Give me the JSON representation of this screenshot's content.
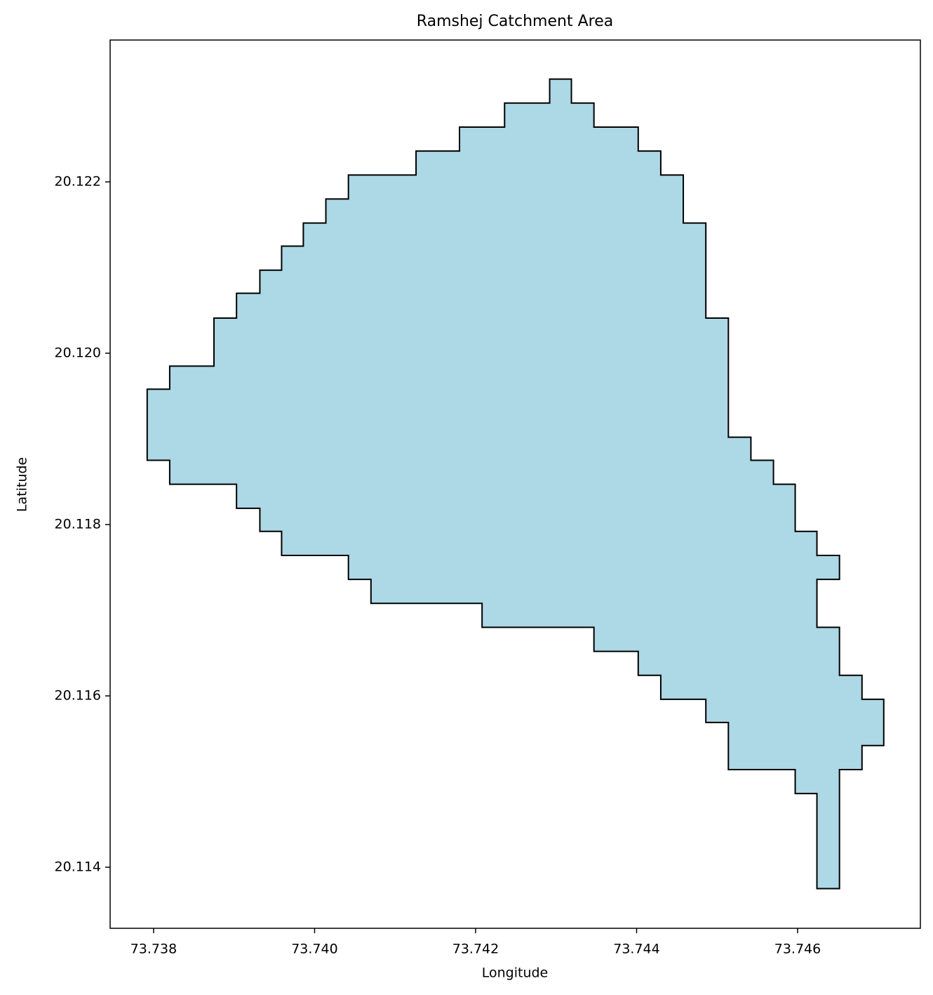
{
  "chart_data": {
    "type": "polygon",
    "title": "Ramshej Catchment Area",
    "x_label": "Longitude",
    "y_label": "Latitude",
    "fill_color": "#add8e6",
    "edge_color": "#000000",
    "xlim": [
      73.73746,
      73.747525
    ],
    "ylim": [
      20.113287,
      20.123656
    ],
    "xticks": [
      73.738,
      73.74,
      73.742,
      73.744,
      73.746
    ],
    "xtick_labels": [
      "73.738",
      "73.740",
      "73.742",
      "73.744",
      "73.746"
    ],
    "yticks": [
      20.114,
      20.116,
      20.118,
      {
        "value": 20.12,
        "label": "20.120"
      },
      20.122
    ],
    "x": [
      73.74292,
      73.74319,
      73.74319,
      73.74347,
      73.74347,
      73.74402,
      73.74402,
      73.7443,
      73.7443,
      73.74458,
      73.74458,
      73.74486,
      73.74486,
      73.74514,
      73.74514,
      73.74542,
      73.74542,
      73.7457,
      73.7457,
      73.74597,
      73.74597,
      73.74624,
      73.74624,
      73.74652,
      73.74652,
      73.74624,
      73.74624,
      73.74652,
      73.74652,
      73.7468,
      73.7468,
      73.74707,
      73.74707,
      73.7468,
      73.7468,
      73.74652,
      73.74652,
      73.74624,
      73.74624,
      73.74597,
      73.74597,
      73.74514,
      73.74514,
      73.74486,
      73.74486,
      73.7443,
      73.7443,
      73.74402,
      73.74402,
      73.74347,
      73.74347,
      73.74208,
      73.74208,
      73.7407,
      73.7407,
      73.74042,
      73.74042,
      73.73959,
      73.73959,
      73.73932,
      73.73932,
      73.73903,
      73.73903,
      73.7382,
      73.7382,
      73.73792,
      73.73792,
      73.7382,
      73.7382,
      73.73875,
      73.73875,
      73.73903,
      73.73903,
      73.73932,
      73.73932,
      73.73959,
      73.73959,
      73.73986,
      73.73986,
      73.74014,
      73.74014,
      73.74042,
      73.74042,
      73.74126,
      73.74126,
      73.7418,
      73.7418,
      73.74236,
      73.74236,
      73.74292
    ],
    "y": [
      20.1232,
      20.1232,
      20.12292,
      20.12292,
      20.12264,
      20.12264,
      20.12236,
      20.12236,
      20.12208,
      20.12208,
      20.12152,
      20.12152,
      20.12041,
      20.12041,
      20.11902,
      20.11902,
      20.11875,
      20.11875,
      20.11847,
      20.11847,
      20.11792,
      20.11792,
      20.11764,
      20.11764,
      20.11736,
      20.11736,
      20.1168,
      20.1168,
      20.11624,
      20.11624,
      20.11596,
      20.11596,
      20.11542,
      20.11542,
      20.11514,
      20.11514,
      20.11375,
      20.11375,
      20.11486,
      20.11486,
      20.11514,
      20.11514,
      20.11569,
      20.11569,
      20.11596,
      20.11596,
      20.11624,
      20.11624,
      20.11652,
      20.11652,
      20.1168,
      20.1168,
      20.11708,
      20.11708,
      20.11736,
      20.11736,
      20.11764,
      20.11764,
      20.11792,
      20.11792,
      20.11819,
      20.11819,
      20.11847,
      20.11847,
      20.11875,
      20.11875,
      20.11958,
      20.11958,
      20.11985,
      20.11985,
      20.12041,
      20.12041,
      20.1207,
      20.1207,
      20.12097,
      20.12097,
      20.12125,
      20.12125,
      20.12152,
      20.12152,
      20.1218,
      20.1218,
      20.12208,
      20.12208,
      20.12236,
      20.12236,
      20.12264,
      20.12264,
      20.12292,
      20.12292
    ]
  }
}
